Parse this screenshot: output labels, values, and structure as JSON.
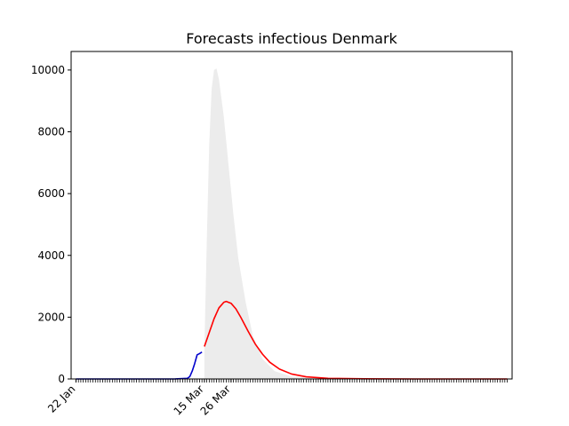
{
  "chart_data": {
    "type": "line",
    "title": "Forecasts infectious Denmark",
    "xlabel": "",
    "ylabel": "",
    "ylim": [
      0,
      10600
    ],
    "yticks": [
      0,
      2000,
      4000,
      6000,
      8000,
      10000
    ],
    "x_range": [
      "2020-01-20",
      "2020-07-20"
    ],
    "x_labeled_ticks": [
      {
        "date": "2020-01-22",
        "label": "22 Jan"
      },
      {
        "date": "2020-03-15",
        "label": "15 Mar"
      },
      {
        "date": "2020-03-26",
        "label": "26 Mar"
      }
    ],
    "x_minor_tick_dates": {
      "start": "2020-01-22",
      "end": "2020-07-18"
    },
    "grid": false,
    "colors": {
      "observed": "#0000cc",
      "forecast": "#ff0000",
      "band": "#ececec"
    },
    "series": [
      {
        "name": "",
        "style": "observed",
        "points": [
          {
            "x": "2020-01-22",
            "y": 0
          },
          {
            "x": "2020-02-26",
            "y": 0
          },
          {
            "x": "2020-03-03",
            "y": 3
          },
          {
            "x": "2020-03-08",
            "y": 20
          },
          {
            "x": "2020-03-09",
            "y": 80
          },
          {
            "x": "2020-03-10",
            "y": 260
          },
          {
            "x": "2020-03-11",
            "y": 500
          },
          {
            "x": "2020-03-12",
            "y": 780
          },
          {
            "x": "2020-03-13",
            "y": 820
          },
          {
            "x": "2020-03-14",
            "y": 870
          }
        ]
      },
      {
        "name": "",
        "style": "forecast",
        "points": [
          {
            "x": "2020-03-15",
            "y": 1050
          },
          {
            "x": "2020-03-17",
            "y": 1500
          },
          {
            "x": "2020-03-19",
            "y": 1950
          },
          {
            "x": "2020-03-21",
            "y": 2300
          },
          {
            "x": "2020-03-23",
            "y": 2480
          },
          {
            "x": "2020-03-24",
            "y": 2510
          },
          {
            "x": "2020-03-26",
            "y": 2450
          },
          {
            "x": "2020-03-28",
            "y": 2270
          },
          {
            "x": "2020-03-30",
            "y": 2000
          },
          {
            "x": "2020-04-02",
            "y": 1550
          },
          {
            "x": "2020-04-05",
            "y": 1130
          },
          {
            "x": "2020-04-08",
            "y": 800
          },
          {
            "x": "2020-04-11",
            "y": 540
          },
          {
            "x": "2020-04-15",
            "y": 320
          },
          {
            "x": "2020-04-20",
            "y": 160
          },
          {
            "x": "2020-04-26",
            "y": 70
          },
          {
            "x": "2020-05-05",
            "y": 20
          },
          {
            "x": "2020-05-20",
            "y": 5
          },
          {
            "x": "2020-06-10",
            "y": 0
          },
          {
            "x": "2020-07-18",
            "y": 0
          }
        ]
      }
    ],
    "band": {
      "lower": 0,
      "upper": [
        {
          "x": "2020-03-15",
          "y": 1000
        },
        {
          "x": "2020-03-16",
          "y": 4500
        },
        {
          "x": "2020-03-17",
          "y": 7600
        },
        {
          "x": "2020-03-18",
          "y": 9400
        },
        {
          "x": "2020-03-19",
          "y": 10000
        },
        {
          "x": "2020-03-20",
          "y": 10050
        },
        {
          "x": "2020-03-21",
          "y": 9700
        },
        {
          "x": "2020-03-23",
          "y": 8500
        },
        {
          "x": "2020-03-25",
          "y": 6900
        },
        {
          "x": "2020-03-27",
          "y": 5300
        },
        {
          "x": "2020-03-29",
          "y": 3900
        },
        {
          "x": "2020-04-01",
          "y": 2500
        },
        {
          "x": "2020-04-04",
          "y": 1400
        },
        {
          "x": "2020-04-08",
          "y": 650
        },
        {
          "x": "2020-04-13",
          "y": 250
        },
        {
          "x": "2020-04-20",
          "y": 80
        },
        {
          "x": "2020-05-01",
          "y": 20
        },
        {
          "x": "2020-05-20",
          "y": 3
        },
        {
          "x": "2020-06-10",
          "y": 0
        }
      ]
    }
  }
}
